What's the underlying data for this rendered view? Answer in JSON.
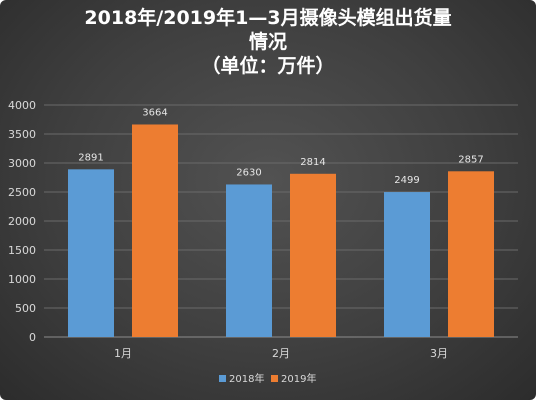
{
  "chart_data": {
    "type": "bar",
    "title": {
      "line1": "2018年/2019年1—3月摄像头模组出货量",
      "line2": "情况",
      "line3": "（单位：万件）"
    },
    "categories": [
      "1月",
      "2月",
      "3月"
    ],
    "series": [
      {
        "name": "2018年",
        "values": [
          2891,
          2630,
          2499
        ],
        "color": "#5b9bd5"
      },
      {
        "name": "2019年",
        "values": [
          3664,
          2814,
          2857
        ],
        "color": "#ed7d31"
      }
    ],
    "ylim": [
      0,
      4000
    ],
    "yticks": [
      0,
      500,
      1000,
      1500,
      2000,
      2500,
      3000,
      3500,
      4000
    ],
    "grid": true,
    "legend": "bottom",
    "xlabel": "",
    "ylabel": ""
  }
}
